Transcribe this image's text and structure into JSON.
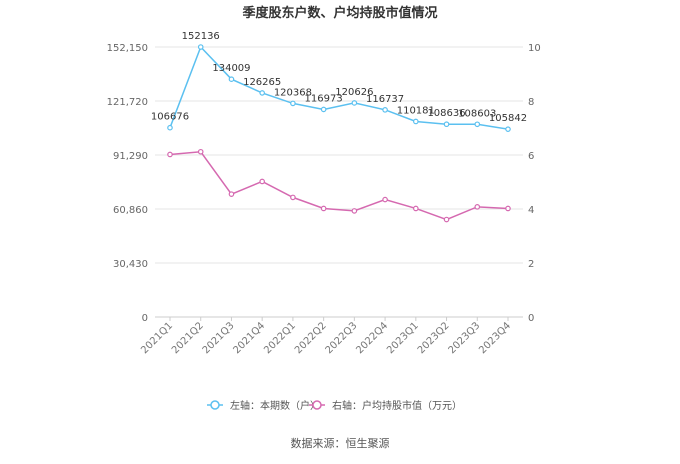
{
  "chart_data": {
    "type": "line",
    "title": "季度股东户数、户均持股市值情况",
    "categories": [
      "2021Q1",
      "2021Q2",
      "2021Q3",
      "2021Q4",
      "2022Q1",
      "2022Q2",
      "2022Q3",
      "2022Q4",
      "2023Q1",
      "2023Q2",
      "2023Q3",
      "2023Q4"
    ],
    "left_axis": {
      "ticks": [
        "0",
        "30,430",
        "60,860",
        "91,290",
        "121,720",
        "152,150"
      ],
      "range": [
        0,
        152150
      ]
    },
    "right_axis": {
      "ticks": [
        "0",
        "2",
        "4",
        "6",
        "8",
        "10"
      ],
      "range": [
        0,
        10
      ]
    },
    "series": [
      {
        "name": "左轴：本期数（户）",
        "axis": "left",
        "color": "#5bc0f0",
        "values": [
          106676,
          152136,
          134009,
          126265,
          120368,
          116973,
          120626,
          116737,
          110181,
          108636,
          108603,
          105842
        ],
        "labels": [
          "106676",
          "152136",
          "134009",
          "126265",
          "120368",
          "116973",
          "120626",
          "116737",
          "110181",
          "108636",
          "108603",
          "105842"
        ]
      },
      {
        "name": "右轴：户均持股市值（万元）",
        "axis": "right",
        "color": "#d569b0",
        "values": [
          6.02,
          6.12,
          4.55,
          5.02,
          4.43,
          4.02,
          3.93,
          4.35,
          4.02,
          3.61,
          4.08,
          4.02
        ]
      }
    ],
    "grid": true,
    "legend_position": "bottom"
  },
  "footer": {
    "source": "数据来源：恒生聚源"
  }
}
